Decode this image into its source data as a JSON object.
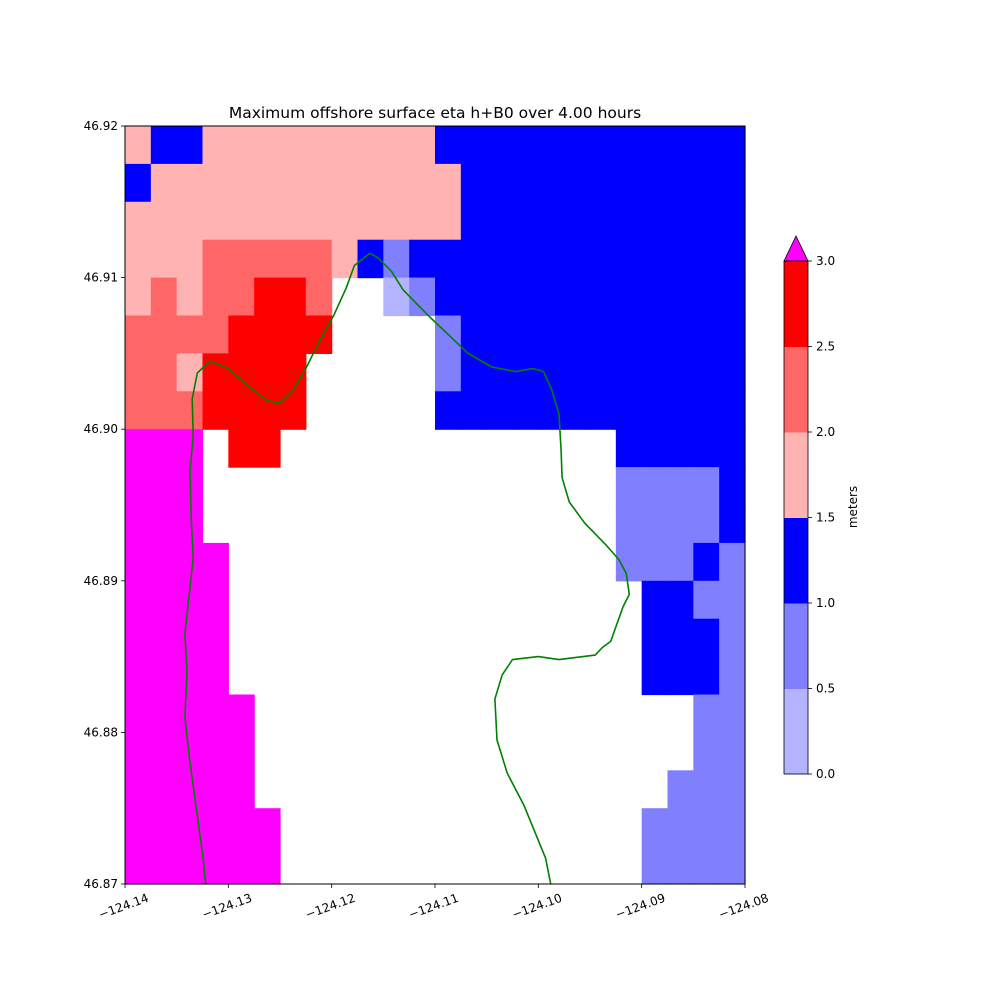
{
  "chart_data": {
    "type": "heatmap",
    "title": "Maximum offshore surface eta h+B0 over 4.00 hours",
    "xlim": [
      -124.14,
      -124.08
    ],
    "ylim": [
      46.87,
      46.92
    ],
    "x_ticks": [
      "−124.14",
      "−124.13",
      "−124.12",
      "−124.11",
      "−124.10",
      "−124.09",
      "−124.08"
    ],
    "y_ticks": [
      "46.87",
      "46.88",
      "46.89",
      "46.90",
      "46.91",
      "46.92"
    ],
    "colorbar": {
      "label": "meters",
      "ticks": [
        "0.0",
        "0.5",
        "1.0",
        "1.5",
        "2.0",
        "2.5",
        "3.0"
      ],
      "levels": [
        0,
        0.5,
        1.0,
        1.5,
        2.0,
        2.5,
        3.0
      ],
      "colors": [
        "#b3b3ff",
        "#8080ff",
        "#0000ff",
        "#ffb3b3",
        "#ff6666",
        "#ff0000"
      ],
      "over_color": "#ff00ff",
      "extend": "max"
    },
    "grid": {
      "cols": 24,
      "rows": 20,
      "row_order": "top-to-bottom",
      "legend": {
        ".": "dry land (no data)",
        "a": "0.0-0.5",
        "b": "0.5-1.0",
        "c": "1.0-1.5",
        "d": "1.5-2.0",
        "e": "2.0-2.5",
        "f": "2.5-3.0",
        "m": "> 3.0"
      },
      "cells": [
        "dccdddddddddcccccccccccc",
        "cddddddddddddccccccccccc",
        "dddddddddddddccccccccccc",
        "dddeeeeedcbccccccccccccc",
        "dedeeffe..abcccccccccccc",
        "eeeeffff....bccccccccccc",
        "eedffff.....bccccccccccc",
        "eeeffff.....cccccccccccc",
        "mmm.ff.............ccccc",
        "mmm................bbbbc",
        "mmm................bbbbc",
        "mmmm...............bbbcb",
        "mmmm................ccbb",
        "mmmm................cccb",
        "mmmm................cccb",
        "mmmmm.................bb",
        "mmmmm.................bb",
        "mmmmm................bbb",
        "mmmmmm..............bbbb",
        "mmmmmm..............bbbb"
      ]
    },
    "coastline": {
      "color": "#008000",
      "lonlat": [
        [
          -124.1322,
          46.87
        ],
        [
          -124.1324,
          46.8715
        ],
        [
          -124.1328,
          46.8735
        ],
        [
          -124.1333,
          46.876
        ],
        [
          -124.1338,
          46.8785
        ],
        [
          -124.1342,
          46.881
        ],
        [
          -124.134,
          46.884
        ],
        [
          -124.1342,
          46.8865
        ],
        [
          -124.1338,
          46.889
        ],
        [
          -124.1334,
          46.8915
        ],
        [
          -124.1336,
          46.8943
        ],
        [
          -124.1337,
          46.8973
        ],
        [
          -124.1334,
          46.8995
        ],
        [
          -124.1335,
          46.902
        ],
        [
          -124.133,
          46.9037
        ],
        [
          -124.1318,
          46.9045
        ],
        [
          -124.13,
          46.904
        ],
        [
          -124.128,
          46.9028
        ],
        [
          -124.1263,
          46.9019
        ],
        [
          -124.125,
          46.9017
        ],
        [
          -124.1238,
          46.9025
        ],
        [
          -124.1225,
          46.904
        ],
        [
          -124.1212,
          46.9058
        ],
        [
          -124.1198,
          46.9075
        ],
        [
          -124.1186,
          46.9093
        ],
        [
          -124.1178,
          46.9108
        ],
        [
          -124.1163,
          46.9116
        ],
        [
          -124.1155,
          46.9113
        ],
        [
          -124.1142,
          46.9104
        ],
        [
          -124.1131,
          46.9092
        ],
        [
          -124.1118,
          46.9083
        ],
        [
          -124.1105,
          46.9074
        ],
        [
          -124.1088,
          46.9063
        ],
        [
          -124.1068,
          46.905
        ],
        [
          -124.1045,
          46.9041
        ],
        [
          -124.1022,
          46.9038
        ],
        [
          -124.1005,
          46.904
        ],
        [
          -124.0995,
          46.9038
        ],
        [
          -124.0987,
          46.9026
        ],
        [
          -124.098,
          46.901
        ],
        [
          -124.0978,
          46.8986
        ],
        [
          -124.0977,
          46.8968
        ],
        [
          -124.097,
          46.8952
        ],
        [
          -124.0955,
          46.8938
        ],
        [
          -124.0935,
          46.8924
        ],
        [
          -124.0922,
          46.8914
        ],
        [
          -124.0915,
          46.8905
        ],
        [
          -124.0912,
          46.8891
        ],
        [
          -124.0918,
          46.8883
        ],
        [
          -124.093,
          46.886
        ],
        [
          -124.0938,
          46.8856
        ],
        [
          -124.0945,
          46.8851
        ],
        [
          -124.098,
          46.8848
        ],
        [
          -124.1,
          46.885
        ],
        [
          -124.1025,
          46.8848
        ],
        [
          -124.1035,
          46.8838
        ],
        [
          -124.1042,
          46.8822
        ],
        [
          -124.104,
          46.8795
        ],
        [
          -124.103,
          46.8773
        ],
        [
          -124.1014,
          46.8752
        ],
        [
          -124.0993,
          46.8717
        ],
        [
          -124.0988,
          46.87
        ]
      ]
    }
  }
}
